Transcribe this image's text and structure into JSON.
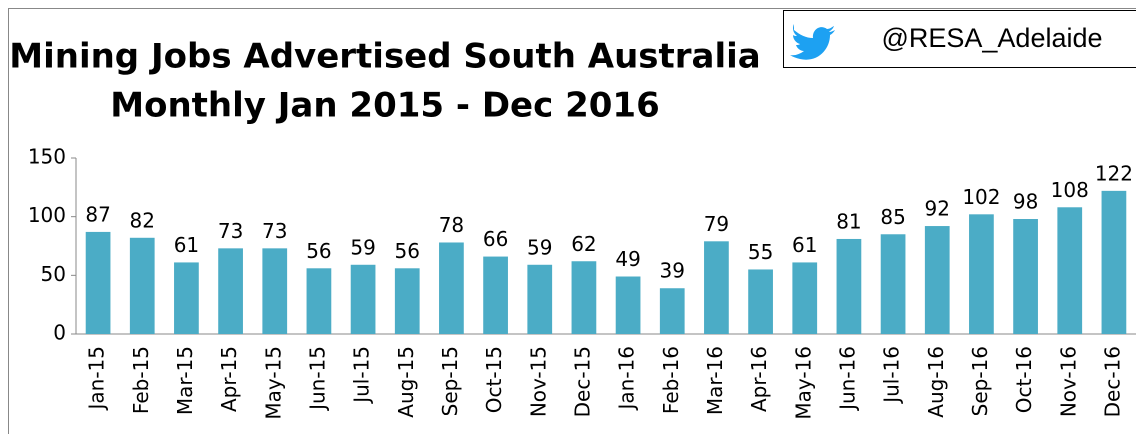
{
  "chart_data": {
    "type": "bar",
    "title": "Mining Jobs Advertised South Australia",
    "subtitle": "Monthly Jan 2015 - Dec 2016",
    "categories": [
      "Jan-15",
      "Feb-15",
      "Mar-15",
      "Apr-15",
      "May-15",
      "Jun-15",
      "Jul-15",
      "Aug-15",
      "Sep-15",
      "Oct-15",
      "Nov-15",
      "Dec-15",
      "Jan-16",
      "Feb-16",
      "Mar-16",
      "Apr-16",
      "May-16",
      "Jun-16",
      "Jul-16",
      "Aug-16",
      "Sep-16",
      "Oct-16",
      "Nov-16",
      "Dec-16"
    ],
    "values": [
      87,
      82,
      61,
      73,
      73,
      56,
      59,
      56,
      78,
      66,
      59,
      62,
      49,
      39,
      79,
      55,
      61,
      81,
      85,
      92,
      102,
      98,
      108,
      122
    ],
    "color": "#4bacc6",
    "ylim": [
      0,
      150
    ],
    "yticks": [
      0,
      50,
      100,
      150
    ],
    "grid": false
  },
  "badge": "@RESA_Adelaide"
}
